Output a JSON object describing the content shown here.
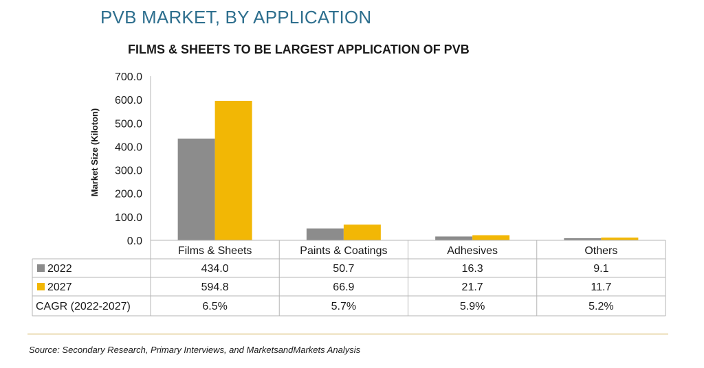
{
  "title": "PVB MARKET, BY APPLICATION",
  "subtitle": "FILMS & SHEETS TO BE LARGEST APPLICATION OF PVB",
  "source": "Source: Secondary Research, Primary Interviews, and MarketsandMarkets Analysis",
  "colors": {
    "s2022": "#8c8c8c",
    "s2027": "#f2b705",
    "title": "#2e6f8e",
    "rule": "#c9a43a"
  },
  "chart_data": {
    "type": "bar",
    "title": "FILMS & SHEETS TO BE LARGEST APPLICATION OF PVB",
    "ylabel": "Market Size (Kiloton)",
    "xlabel": "",
    "ylim": [
      0,
      700
    ],
    "yticks": [
      "0.0",
      "100.0",
      "200.0",
      "300.0",
      "400.0",
      "500.0",
      "600.0",
      "700.0"
    ],
    "categories": [
      "Films & Sheets",
      "Paints & Coatings",
      "Adhesives",
      "Others"
    ],
    "series": [
      {
        "name": "2022",
        "values": [
          434.0,
          50.7,
          16.3,
          9.1
        ],
        "labels": [
          "434.0",
          "50.7",
          "16.3",
          "9.1"
        ]
      },
      {
        "name": "2027",
        "values": [
          594.8,
          66.9,
          21.7,
          11.7
        ],
        "labels": [
          "594.8",
          "66.9",
          "21.7",
          "11.7"
        ]
      }
    ],
    "extra_row": {
      "name": "CAGR (2022-2027)",
      "values": [
        "6.5%",
        "5.7%",
        "5.9%",
        "5.2%"
      ]
    },
    "grid": false,
    "legend": "data-table"
  }
}
